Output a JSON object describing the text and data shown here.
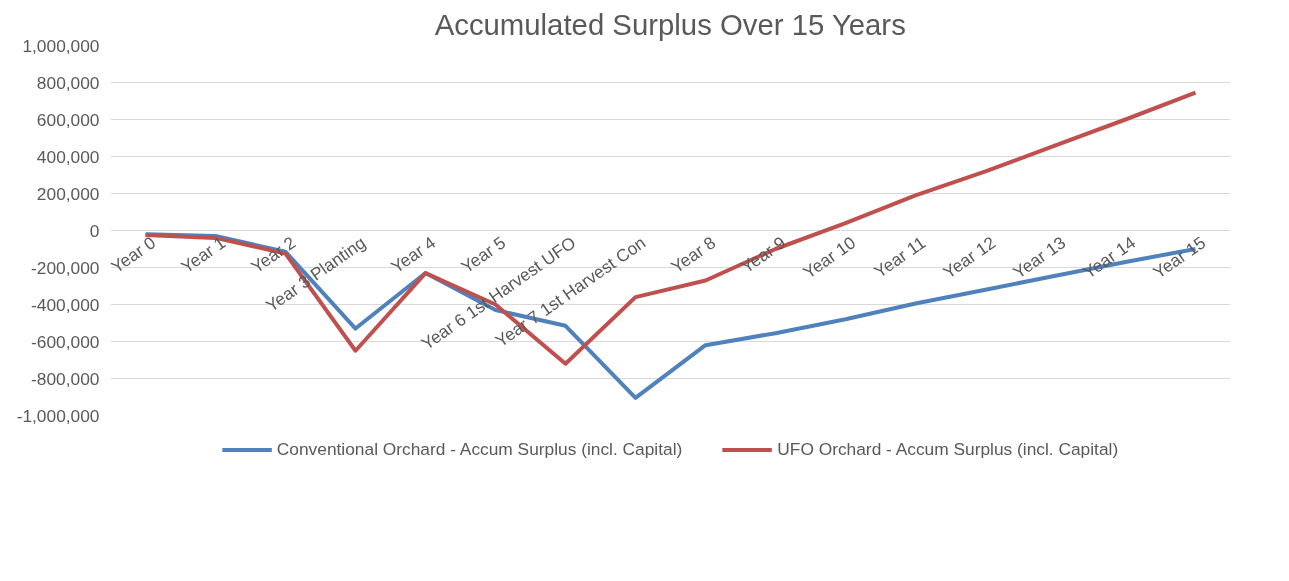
{
  "chart_data": {
    "type": "line",
    "title": "Accumulated Surplus Over 15 Years",
    "categories": [
      "Year 0",
      "Year 1",
      "Year 2",
      "Year 3 Planting",
      "Year 4",
      "Year 5",
      "Year 6 1st Harvest UFO",
      "Year 7 1st Harvest Con",
      "Year 8",
      "Year 9",
      "Year 10",
      "Year 11",
      "Year 12",
      "Year 13",
      "Year 14",
      "Year 15"
    ],
    "series": [
      {
        "name": "Conventional Orchard - Accum Surplus (incl. Capital)",
        "color": "#4f81bd",
        "values": [
          -20000,
          -30000,
          -115000,
          -530000,
          -230000,
          -430000,
          -515000,
          -905000,
          -620000,
          -555000,
          -480000,
          -395000,
          -320000,
          -245000,
          -170000,
          -100000
        ]
      },
      {
        "name": "UFO Orchard - Accum Surplus (incl. Capital)",
        "color": "#c0504d",
        "values": [
          -25000,
          -40000,
          -125000,
          -650000,
          -230000,
          -400000,
          -720000,
          -360000,
          -270000,
          -100000,
          40000,
          190000,
          320000,
          460000,
          600000,
          745000
        ]
      }
    ],
    "ylim": [
      -1000000,
      1000000
    ],
    "yticks": [
      {
        "value": -1000000,
        "label": "-1,000,000"
      },
      {
        "value": -800000,
        "label": "-800,000"
      },
      {
        "value": -600000,
        "label": "-600,000"
      },
      {
        "value": -400000,
        "label": "-400,000"
      },
      {
        "value": -200000,
        "label": "-200,000"
      },
      0,
      {
        "value": 200000,
        "label": "200,000"
      },
      {
        "value": 400000,
        "label": "400,000"
      },
      {
        "value": 600000,
        "label": "600,000"
      },
      {
        "value": 800000,
        "label": "800,000"
      },
      {
        "value": 1000000,
        "label": "1,000,000"
      }
    ],
    "grid": "y",
    "legend": "bottom",
    "marker": "none",
    "line_style": "solid"
  }
}
